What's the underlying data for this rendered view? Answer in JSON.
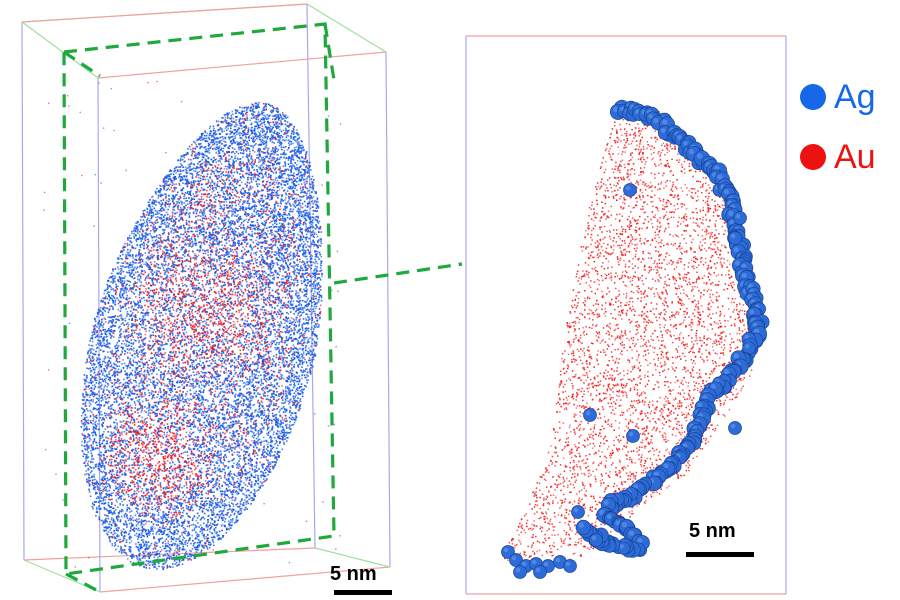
{
  "colors": {
    "ag": "#1559e8",
    "au": "#f21616",
    "ag_inset": "#2d6bd6",
    "box_red": "#f0a0a0",
    "box_blue": "#a8a8ee",
    "box_green": "#9fe09f",
    "section_green": "#1fa83c"
  },
  "legend": [
    {
      "symbol": "Ag",
      "color": "#1668e8"
    },
    {
      "symbol": "Au",
      "color": "#ee1111"
    }
  ],
  "scale_bars": {
    "left_label": "5 nm",
    "right_label": "5 nm"
  }
}
